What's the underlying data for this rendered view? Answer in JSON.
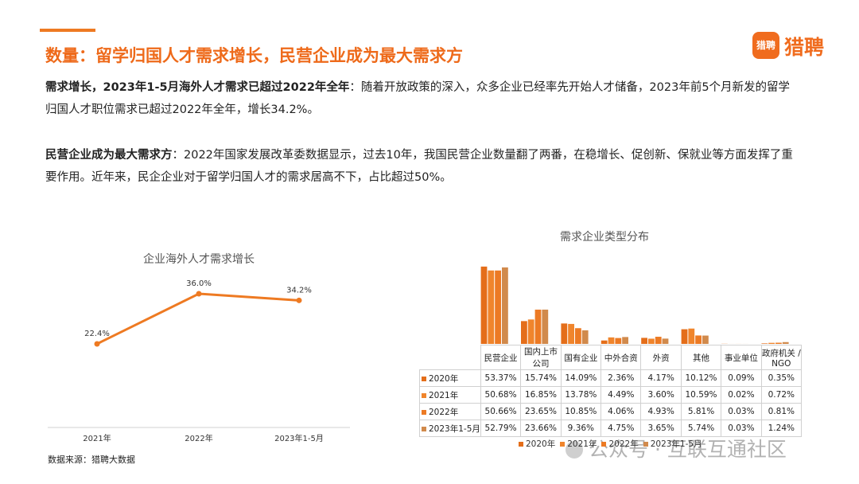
{
  "header": {
    "title": "数量：留学归国人才需求增长，民营企业成为最大需求方",
    "logo_icon": "猎聘",
    "logo": "猎聘"
  },
  "paragraphs": [
    {
      "lead": "需求增长，2023年1-5月海外人才需求已超过2022年全年",
      "text": "：随着开放政策的深入，众多企业已经率先开始人才储备，2023年前5个月新发的留学归国人才职位需求已超过2022年全年，增长34.2%。"
    },
    {
      "lead": "民营企业成为最大需求方",
      "text": "：2022年国家发展改革委数据显示，过去10年，我国民营企业数量翻了两番，在稳增长、促创新、保就业等方面发挥了重要作用。近年来，民企企业对于留学归国人才的需求居高不下，占比超过50%。"
    }
  ],
  "chart_data": [
    {
      "type": "line",
      "title": "企业海外人才需求增长",
      "categories": [
        "2021年",
        "2022年",
        "2023年1-5月"
      ],
      "values": [
        22.4,
        36.0,
        34.2
      ],
      "value_labels": [
        "22.4%",
        "36.0%",
        "34.2%"
      ],
      "color": "#ee7a22"
    },
    {
      "type": "bar",
      "title": "需求企业类型分布",
      "categories": [
        "民营企业",
        "国内上市公司",
        "国有企业",
        "中外合资",
        "外资",
        "其他",
        "事业单位",
        "政府机关 / NGO"
      ],
      "series": [
        {
          "name": "2020年",
          "color": "#e46e1a",
          "values": [
            53.37,
            15.74,
            14.09,
            2.36,
            4.17,
            10.12,
            0.09,
            0.35
          ],
          "value_labels": [
            "53.37%",
            "15.74%",
            "14.09%",
            "2.36%",
            "4.17%",
            "10.12%",
            "0.09%",
            "0.35%"
          ]
        },
        {
          "name": "2021年",
          "color": "#f0852c",
          "values": [
            50.68,
            16.85,
            13.78,
            4.49,
            3.6,
            10.59,
            0.02,
            0.72
          ],
          "value_labels": [
            "50.68%",
            "16.85%",
            "13.78%",
            "4.49%",
            "3.60%",
            "10.59%",
            "0.02%",
            "0.72%"
          ]
        },
        {
          "name": "2022年",
          "color": "#ec7a24",
          "values": [
            50.66,
            23.65,
            10.85,
            4.06,
            4.93,
            5.81,
            0.03,
            0.81
          ],
          "value_labels": [
            "50.66%",
            "23.65%",
            "10.85%",
            "4.06%",
            "4.93%",
            "5.81%",
            "0.03%",
            "0.81%"
          ]
        },
        {
          "name": "2023年1-5月",
          "color": "#d18a4c",
          "values": [
            52.79,
            23.66,
            9.36,
            4.75,
            3.65,
            5.74,
            0.03,
            1.24
          ],
          "value_labels": [
            "52.79%",
            "23.66%",
            "9.36%",
            "4.75%",
            "3.65%",
            "5.74%",
            "0.03%",
            "1.24%"
          ]
        }
      ],
      "legend": "bottom"
    }
  ],
  "source": "数据来源：猎聘大数据",
  "watermark": "公众号 · 互联互通社区"
}
